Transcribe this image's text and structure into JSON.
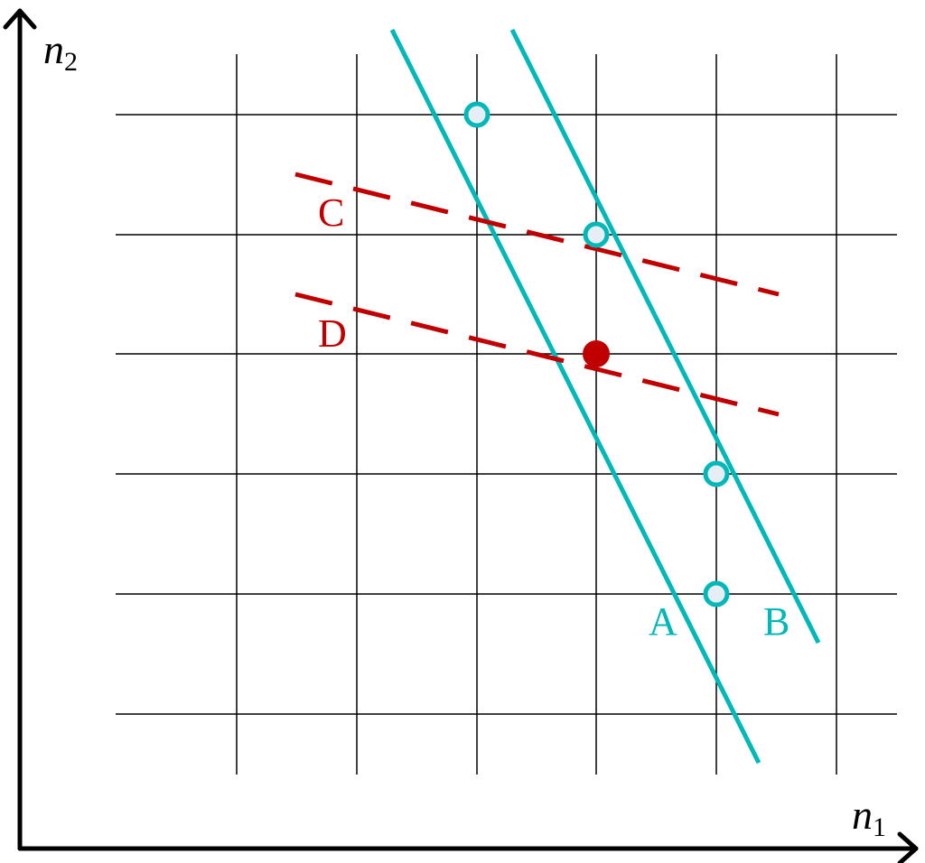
{
  "axes": {
    "x_label": {
      "base": "n",
      "sub": "1"
    },
    "y_label": {
      "base": "n",
      "sub": "2"
    }
  },
  "lines": [
    {
      "label": "A"
    },
    {
      "label": "B"
    },
    {
      "label": "C"
    },
    {
      "label": "D"
    }
  ]
}
